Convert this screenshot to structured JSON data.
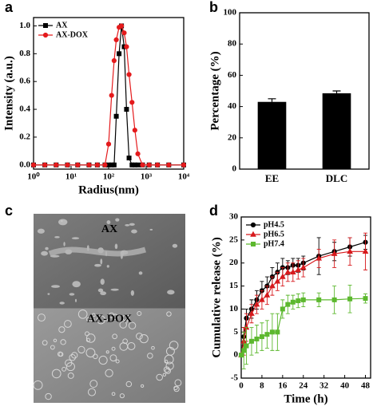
{
  "chart_data": [
    {
      "type": "line",
      "panel_label": "a",
      "xlabel": "Radius(nm)",
      "ylabel": "Intensity (a.u.)",
      "xscale": "log",
      "x": [
        1,
        2,
        4,
        8,
        15,
        30,
        50,
        80,
        100,
        120,
        140,
        160,
        190,
        220,
        260,
        300,
        350,
        420,
        500,
        600,
        800,
        1200,
        2000,
        4000,
        10000
      ],
      "xlim": [
        1,
        10000
      ],
      "xticks": [
        {
          "value": 1,
          "label": "10⁰"
        },
        {
          "value": 10,
          "label": "10¹"
        },
        {
          "value": 100,
          "label": "10²"
        },
        {
          "value": 1000,
          "label": "10³"
        },
        {
          "value": 10000,
          "label": "10⁴"
        }
      ],
      "ylim": [
        -0.03,
        1.06
      ],
      "yticks": [
        {
          "value": 0,
          "label": "0.0"
        },
        0.2,
        0.4,
        0.6,
        0.8,
        {
          "value": 1,
          "label": "1.0"
        }
      ],
      "legend": "upper left",
      "series": [
        {
          "name": "AX",
          "color": "#000000",
          "marker": "square",
          "values": [
            0,
            0,
            0,
            0,
            0,
            0,
            0,
            0,
            0,
            0,
            0,
            0.35,
            0.8,
            1.0,
            0.85,
            0.4,
            0.05,
            0,
            0,
            0,
            0,
            0,
            0,
            0,
            0
          ]
        },
        {
          "name": "AX-DOX",
          "color": "#e41a1c",
          "marker": "circle",
          "values": [
            0,
            0,
            0,
            0,
            0,
            0,
            0,
            0,
            0.15,
            0.5,
            0.75,
            0.9,
            0.99,
            1.0,
            0.95,
            0.85,
            0.65,
            0.45,
            0.25,
            0.08,
            0,
            0,
            0,
            0,
            0
          ]
        }
      ]
    },
    {
      "type": "bar",
      "panel_label": "b",
      "ylabel": "Percentage (%)",
      "categories": [
        "EE",
        "DLC"
      ],
      "values": [
        43,
        48.5
      ],
      "errors": [
        2,
        1.5
      ],
      "color": "#000000",
      "ylim": [
        0,
        100
      ],
      "yticks": [
        0,
        20,
        40,
        60,
        80,
        100
      ]
    },
    {
      "type": "image",
      "panel_label": "c",
      "labels": [
        "AX",
        "AX-DOX"
      ]
    },
    {
      "type": "line",
      "panel_label": "d",
      "xlabel": "Time (h)",
      "ylabel": "Cumulative release (%)",
      "x": [
        0,
        1,
        2,
        4,
        6,
        8,
        10,
        12,
        14,
        16,
        18,
        20,
        22,
        24,
        30,
        36,
        42,
        48
      ],
      "xlim": [
        0,
        50
      ],
      "xticks": [
        0,
        8,
        16,
        24,
        32,
        40,
        48
      ],
      "ylim": [
        -5,
        30
      ],
      "yticks": [
        -5,
        0,
        5,
        10,
        15,
        20,
        25,
        30
      ],
      "legend": "upper left",
      "series": [
        {
          "name": "pH4.5",
          "color": "#000000",
          "marker": "circle",
          "values": [
            0,
            4,
            8,
            10,
            12,
            14,
            15,
            17,
            18,
            19,
            19,
            19.5,
            19.5,
            20,
            21.5,
            22.5,
            23.5,
            24.5
          ],
          "errors": [
            0,
            2,
            2,
            2,
            2,
            2,
            2,
            2,
            2,
            2,
            1.5,
            1.5,
            1.5,
            1.5,
            4,
            2,
            2,
            1.5
          ]
        },
        {
          "name": "pH6.5",
          "color": "#d7191c",
          "marker": "triangle",
          "values": [
            0,
            3,
            6,
            9,
            11,
            12,
            13,
            15,
            16,
            17,
            18,
            18,
            18.5,
            19,
            21,
            22,
            22.5,
            22.5
          ],
          "errors": [
            0,
            3,
            3,
            2,
            2,
            2,
            2,
            2,
            2,
            2,
            2,
            2,
            2,
            2,
            2,
            3,
            3,
            4
          ]
        },
        {
          "name": "pH7.4",
          "color": "#5cb82e",
          "marker": "square",
          "values": [
            0,
            1,
            2,
            3,
            3.5,
            4,
            4.5,
            5,
            5,
            10,
            11,
            11.5,
            11.8,
            12,
            12,
            12,
            12.2,
            12.3
          ],
          "errors": [
            0,
            4,
            4,
            3,
            3,
            3,
            3,
            4,
            4,
            2,
            2,
            1.5,
            1.5,
            1.5,
            1.5,
            3,
            3,
            1
          ]
        }
      ]
    }
  ]
}
